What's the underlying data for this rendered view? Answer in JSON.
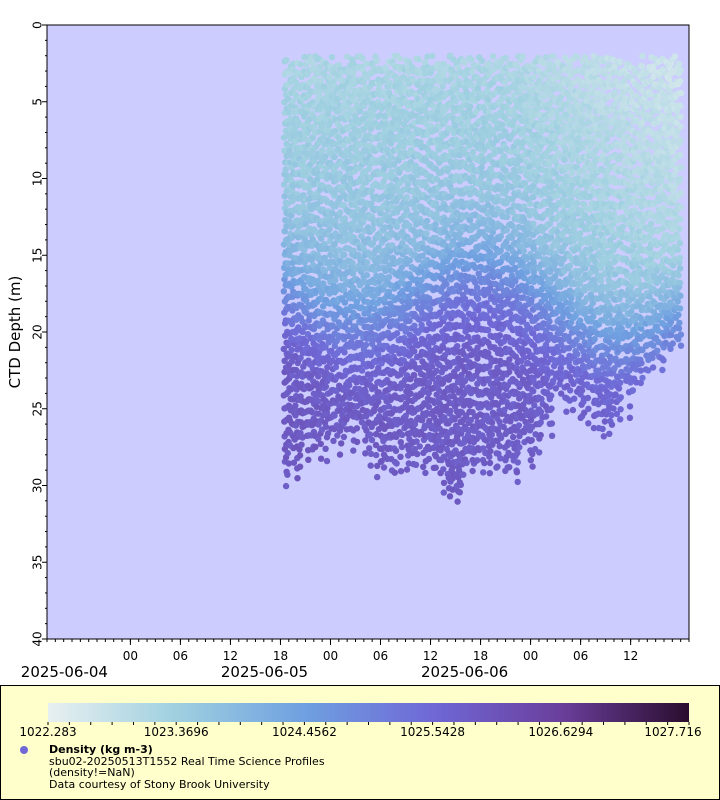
{
  "chart_data": {
    "type": "scatter",
    "ylabel": "CTD Depth (m)",
    "xlabel": "",
    "ylim": [
      0,
      40
    ],
    "y_inverted": true,
    "y_ticks": [
      "0",
      "5",
      "10",
      "15",
      "20",
      "25",
      "30",
      "35",
      "40"
    ],
    "x_time_range": [
      "2025-06-03T14:00",
      "2025-06-06T19:00"
    ],
    "x_hour_ticks": [
      {
        "t": "2025-06-04T00:00",
        "label": "00"
      },
      {
        "t": "2025-06-04T06:00",
        "label": "06"
      },
      {
        "t": "2025-06-04T12:00",
        "label": "12"
      },
      {
        "t": "2025-06-04T18:00",
        "label": "18"
      },
      {
        "t": "2025-06-05T00:00",
        "label": "00"
      },
      {
        "t": "2025-06-05T06:00",
        "label": "06"
      },
      {
        "t": "2025-06-05T12:00",
        "label": "12"
      },
      {
        "t": "2025-06-05T18:00",
        "label": "18"
      },
      {
        "t": "2025-06-06T00:00",
        "label": "00"
      },
      {
        "t": "2025-06-06T06:00",
        "label": "06"
      },
      {
        "t": "2025-06-06T12:00",
        "label": "12"
      }
    ],
    "x_date_labels": [
      "2025-06-04",
      "2025-06-05",
      "2025-06-06"
    ],
    "data_time_range": [
      "2025-06-04T18:30",
      "2025-06-06T18:00"
    ],
    "series": [
      {
        "name": "Density (kg m-3)",
        "depth_range": [
          0.5,
          32.5
        ],
        "density_range": [
          1022.283,
          1027.716
        ],
        "profile_samples": [
          {
            "time": "2025-06-04T18:30",
            "max_depth": 31.0
          },
          {
            "time": "2025-06-04T22:00",
            "max_depth": 29.5
          },
          {
            "time": "2025-06-05T02:00",
            "max_depth": 28.0
          },
          {
            "time": "2025-06-05T07:00",
            "max_depth": 30.4
          },
          {
            "time": "2025-06-05T12:00",
            "max_depth": 29.5
          },
          {
            "time": "2025-06-05T15:00",
            "max_depth": 32.4
          },
          {
            "time": "2025-06-05T19:00",
            "max_depth": 30.0
          },
          {
            "time": "2025-06-05T23:00",
            "max_depth": 29.8
          },
          {
            "time": "2025-06-06T04:00",
            "max_depth": 26.0
          },
          {
            "time": "2025-06-06T10:00",
            "max_depth": 27.8
          },
          {
            "time": "2025-06-06T14:00",
            "max_depth": 24.0
          },
          {
            "time": "2025-06-06T18:00",
            "max_depth": 21.5
          }
        ]
      }
    ],
    "colorbar": {
      "labels": [
        "1022.283",
        "1023.3696",
        "1024.4562",
        "1025.5428",
        "1026.6294",
        "1027.716"
      ],
      "colors": [
        "#e8f0f0",
        "#9fd0e0",
        "#6fa0e0",
        "#6f68d6",
        "#6a3f9c",
        "#2a0d2e"
      ]
    },
    "colors": {
      "background": "#ccccff",
      "legend_background": "#ffffcc",
      "marker": "#6f68d6"
    }
  },
  "legend": {
    "title": "Density (kg m-3)",
    "line1": "sbu02-20250513T1552 Real Time Science Profiles",
    "line2": "(density!=NaN)",
    "line3": "Data courtesy of Stony Brook University"
  }
}
